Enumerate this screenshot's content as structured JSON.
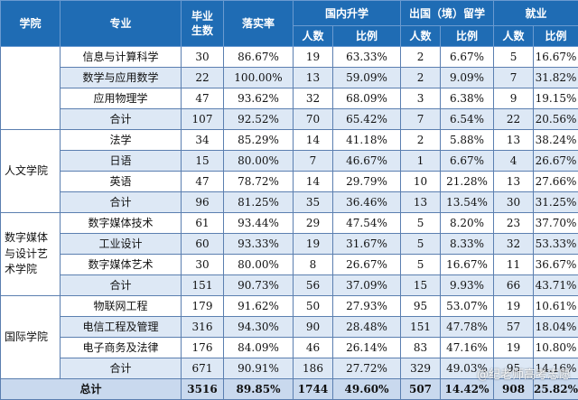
{
  "header": {
    "college": "学院",
    "major": "专业",
    "graduates": [
      "毕业",
      "生数"
    ],
    "rate": "落实率",
    "domestic": "国内升学",
    "abroad": "出国（境）留学",
    "employment": "就业",
    "count": "人数",
    "ratio": "比例"
  },
  "groups": [
    {
      "college_lines": [],
      "rows": [
        [
          "信息与计算科学",
          "30",
          "86.67%",
          "19",
          "63.33%",
          "2",
          "6.67%",
          "5",
          "16.67%"
        ],
        [
          "数学与应用数学",
          "22",
          "100.00%",
          "13",
          "59.09%",
          "2",
          "9.09%",
          "7",
          "31.82%"
        ],
        [
          "应用物理学",
          "47",
          "93.62%",
          "32",
          "68.09%",
          "3",
          "6.38%",
          "9",
          "19.15%"
        ],
        [
          "合计",
          "107",
          "92.52%",
          "70",
          "65.42%",
          "7",
          "6.54%",
          "22",
          "20.56%"
        ]
      ]
    },
    {
      "college_lines": [
        "人文学院"
      ],
      "rows": [
        [
          "法学",
          "34",
          "85.29%",
          "14",
          "41.18%",
          "2",
          "5.88%",
          "13",
          "38.24%"
        ],
        [
          "日语",
          "15",
          "80.00%",
          "7",
          "46.67%",
          "1",
          "6.67%",
          "4",
          "26.67%"
        ],
        [
          "英语",
          "47",
          "78.72%",
          "14",
          "29.79%",
          "10",
          "21.28%",
          "13",
          "27.66%"
        ],
        [
          "合计",
          "96",
          "81.25%",
          "35",
          "36.46%",
          "13",
          "13.54%",
          "30",
          "31.25%"
        ]
      ]
    },
    {
      "college_lines": [
        "数字媒体",
        "与设计艺",
        "术学院"
      ],
      "rows": [
        [
          "数字媒体技术",
          "61",
          "93.44%",
          "29",
          "47.54%",
          "5",
          "8.20%",
          "23",
          "37.70%"
        ],
        [
          "工业设计",
          "60",
          "93.33%",
          "19",
          "31.67%",
          "5",
          "8.33%",
          "32",
          "53.33%"
        ],
        [
          "数字媒体艺术",
          "30",
          "80.00%",
          "8",
          "26.67%",
          "5",
          "16.67%",
          "11",
          "36.67%"
        ],
        [
          "合计",
          "151",
          "90.73%",
          "56",
          "37.09%",
          "15",
          "9.93%",
          "66",
          "43.71%"
        ]
      ]
    },
    {
      "college_lines": [
        "国际学院"
      ],
      "rows": [
        [
          "物联网工程",
          "179",
          "91.62%",
          "50",
          "27.93%",
          "95",
          "53.07%",
          "19",
          "10.61%"
        ],
        [
          "电信工程及管理",
          "316",
          "94.30%",
          "90",
          "28.48%",
          "151",
          "47.78%",
          "57",
          "18.04%"
        ],
        [
          "电子商务及法律",
          "176",
          "84.09%",
          "46",
          "26.14%",
          "83",
          "47.16%",
          "19",
          "10.80%"
        ],
        [
          "合计",
          "671",
          "90.91%",
          "186",
          "27.72%",
          "329",
          "49.03%",
          "95",
          "14.16%"
        ]
      ]
    }
  ],
  "total": [
    "总计",
    "3516",
    "89.85%",
    "1744",
    "49.60%",
    "507",
    "14.42%",
    "908",
    "25.82%"
  ],
  "watermark": "@纪老师高考志愿"
}
